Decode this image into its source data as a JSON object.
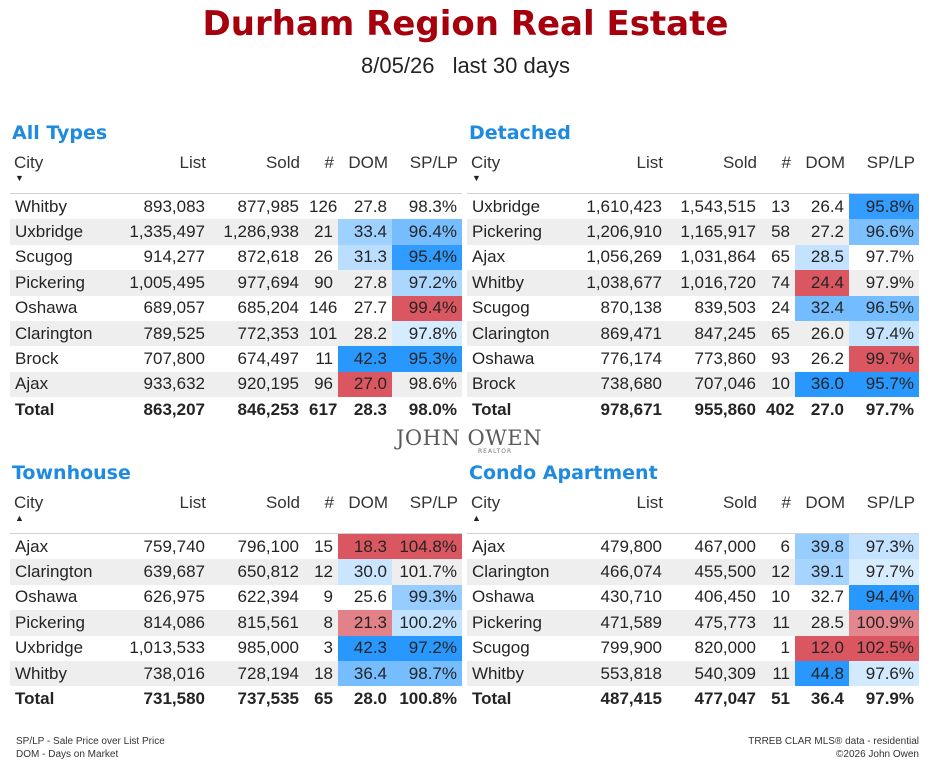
{
  "header": {
    "title": "Durham Region Real Estate",
    "date": "8/05/26",
    "period": "last 30 days"
  },
  "columns": {
    "city": "City",
    "list": "List",
    "sold": "Sold",
    "count": "#",
    "dom": "DOM",
    "splp": "SP/LP"
  },
  "colors": {
    "title": "#a6000d",
    "panel_title": "#1f8be0",
    "good": "#118dff",
    "bad": "#d64550"
  },
  "chart_data": [
    {
      "type": "table",
      "title": "All Types",
      "sort": "desc",
      "rows": [
        {
          "city": "Whitby",
          "list": "893,083",
          "sold": "877,985",
          "count": "126",
          "dom": "27.8",
          "splp": "98.3%"
        },
        {
          "city": "Uxbridge",
          "list": "1,335,497",
          "sold": "1,286,938",
          "count": "21",
          "dom": "33.4",
          "splp": "96.4%"
        },
        {
          "city": "Scugog",
          "list": "914,277",
          "sold": "872,618",
          "count": "26",
          "dom": "31.3",
          "splp": "95.4%"
        },
        {
          "city": "Pickering",
          "list": "1,005,495",
          "sold": "977,694",
          "count": "90",
          "dom": "27.8",
          "splp": "97.2%"
        },
        {
          "city": "Oshawa",
          "list": "689,057",
          "sold": "685,204",
          "count": "146",
          "dom": "27.7",
          "splp": "99.4%"
        },
        {
          "city": "Clarington",
          "list": "789,525",
          "sold": "772,353",
          "count": "101",
          "dom": "28.2",
          "splp": "97.8%"
        },
        {
          "city": "Brock",
          "list": "707,800",
          "sold": "674,497",
          "count": "11",
          "dom": "42.3",
          "splp": "95.3%"
        },
        {
          "city": "Ajax",
          "list": "933,632",
          "sold": "920,195",
          "count": "96",
          "dom": "27.0",
          "splp": "98.6%"
        }
      ],
      "total": {
        "city": "Total",
        "list": "863,207",
        "sold": "846,253",
        "count": "617",
        "dom": "28.3",
        "splp": "98.0%"
      }
    },
    {
      "type": "table",
      "title": "Detached",
      "sort": "desc",
      "rows": [
        {
          "city": "Uxbridge",
          "list": "1,610,423",
          "sold": "1,543,515",
          "count": "13",
          "dom": "26.4",
          "splp": "95.8%"
        },
        {
          "city": "Pickering",
          "list": "1,206,910",
          "sold": "1,165,917",
          "count": "58",
          "dom": "27.2",
          "splp": "96.6%"
        },
        {
          "city": "Ajax",
          "list": "1,056,269",
          "sold": "1,031,864",
          "count": "65",
          "dom": "28.5",
          "splp": "97.7%"
        },
        {
          "city": "Whitby",
          "list": "1,038,677",
          "sold": "1,016,720",
          "count": "74",
          "dom": "24.4",
          "splp": "97.9%"
        },
        {
          "city": "Scugog",
          "list": "870,138",
          "sold": "839,503",
          "count": "24",
          "dom": "32.4",
          "splp": "96.5%"
        },
        {
          "city": "Clarington",
          "list": "869,471",
          "sold": "847,245",
          "count": "65",
          "dom": "26.0",
          "splp": "97.4%"
        },
        {
          "city": "Oshawa",
          "list": "776,174",
          "sold": "773,860",
          "count": "93",
          "dom": "26.2",
          "splp": "99.7%"
        },
        {
          "city": "Brock",
          "list": "738,680",
          "sold": "707,046",
          "count": "10",
          "dom": "36.0",
          "splp": "95.7%"
        }
      ],
      "total": {
        "city": "Total",
        "list": "978,671",
        "sold": "955,860",
        "count": "402",
        "dom": "27.0",
        "splp": "97.7%"
      }
    },
    {
      "type": "table",
      "title": "Townhouse",
      "sort": "asc",
      "rows": [
        {
          "city": "Ajax",
          "list": "759,740",
          "sold": "796,100",
          "count": "15",
          "dom": "18.3",
          "splp": "104.8%"
        },
        {
          "city": "Clarington",
          "list": "639,687",
          "sold": "650,812",
          "count": "12",
          "dom": "30.0",
          "splp": "101.7%"
        },
        {
          "city": "Oshawa",
          "list": "626,975",
          "sold": "622,394",
          "count": "9",
          "dom": "25.6",
          "splp": "99.3%"
        },
        {
          "city": "Pickering",
          "list": "814,086",
          "sold": "815,561",
          "count": "8",
          "dom": "21.3",
          "splp": "100.2%"
        },
        {
          "city": "Uxbridge",
          "list": "1,013,533",
          "sold": "985,000",
          "count": "3",
          "dom": "42.3",
          "splp": "97.2%"
        },
        {
          "city": "Whitby",
          "list": "738,016",
          "sold": "728,194",
          "count": "18",
          "dom": "36.4",
          "splp": "98.7%"
        }
      ],
      "total": {
        "city": "Total",
        "list": "731,580",
        "sold": "737,535",
        "count": "65",
        "dom": "28.0",
        "splp": "100.8%"
      }
    },
    {
      "type": "table",
      "title": "Condo Apartment",
      "sort": "asc",
      "rows": [
        {
          "city": "Ajax",
          "list": "479,800",
          "sold": "467,000",
          "count": "6",
          "dom": "39.8",
          "splp": "97.3%"
        },
        {
          "city": "Clarington",
          "list": "466,074",
          "sold": "455,500",
          "count": "12",
          "dom": "39.1",
          "splp": "97.7%"
        },
        {
          "city": "Oshawa",
          "list": "430,710",
          "sold": "406,450",
          "count": "10",
          "dom": "32.7",
          "splp": "94.4%"
        },
        {
          "city": "Pickering",
          "list": "471,589",
          "sold": "475,773",
          "count": "11",
          "dom": "28.5",
          "splp": "100.9%"
        },
        {
          "city": "Scugog",
          "list": "799,900",
          "sold": "820,000",
          "count": "1",
          "dom": "12.0",
          "splp": "102.5%"
        },
        {
          "city": "Whitby",
          "list": "553,818",
          "sold": "540,309",
          "count": "11",
          "dom": "44.8",
          "splp": "97.6%"
        }
      ],
      "total": {
        "city": "Total",
        "list": "487,415",
        "sold": "477,047",
        "count": "51",
        "dom": "36.4",
        "splp": "97.9%"
      }
    }
  ],
  "logo": {
    "name": "JOHN OWEN",
    "sub": "REALTOR"
  },
  "footer": {
    "left_1": "SP/LP - Sale Price over List Price",
    "left_2": "DOM - Days on Market",
    "right_1": "TRREB CLAR MLS® data - residential",
    "right_2": "©2026 John Owen"
  }
}
